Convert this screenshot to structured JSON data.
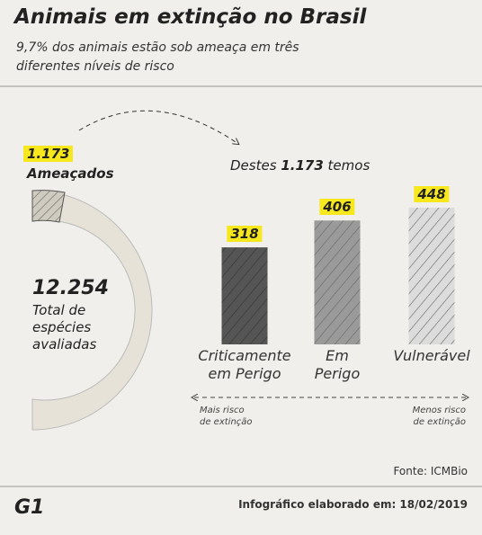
{
  "header": {
    "title": "Animais em extinção no Brasil",
    "subtitle_lines": [
      "9,7% dos animais estão sob ameaça em três",
      "diferentes níveis de risco"
    ]
  },
  "summary": {
    "threatened": "1.173",
    "threatened_caption": "Ameaçados",
    "total": "12.254",
    "total_caption_lines": [
      "Total de",
      "espécies",
      "avaliadas"
    ]
  },
  "chart_data": {
    "type": "bar",
    "title_parts": [
      "Destes",
      "1.173",
      "temos"
    ],
    "categories": [
      "Criticamente em Perigo",
      "Em Perigo",
      "Vulnerável"
    ],
    "values": [
      318,
      406,
      448
    ],
    "colors": [
      "#555555",
      "#9a9a9a",
      "#dcdcdc"
    ],
    "scale_left_lines": [
      "Mais risco",
      "de extinção"
    ],
    "scale_right_lines": [
      "Menos risco",
      "de extinção"
    ]
  },
  "footer": {
    "source": "Fonte: ICMBio",
    "brand": "G1",
    "date": "Infográfico elaborado em: 18/02/2019"
  }
}
